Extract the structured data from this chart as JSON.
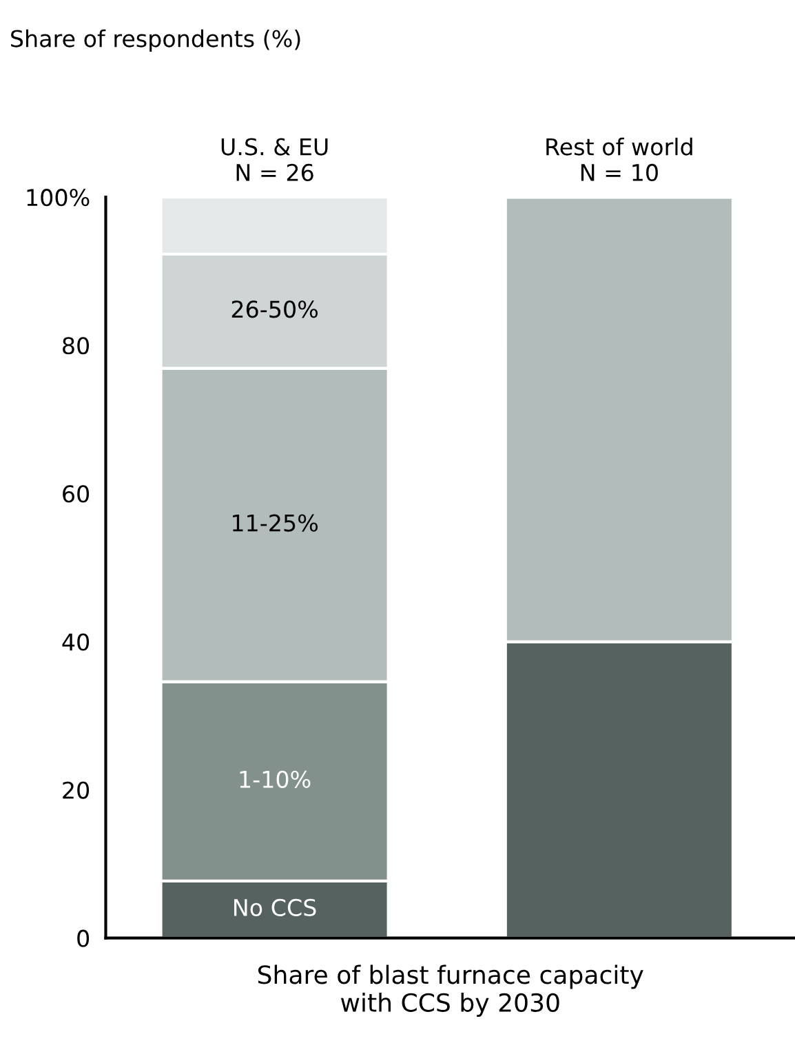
{
  "chart_data": {
    "type": "bar",
    "stacked": true,
    "ylabel": "Share of respondents (%)",
    "xlabel": "Share of blast furnace capacity\nwith CCS by 2030",
    "categories": [
      "U.S. & EU\nN = 26",
      "Rest of world\nN = 10"
    ],
    "series": [
      {
        "name": "No CCS",
        "color": "#56625f",
        "values": [
          7.7,
          40
        ]
      },
      {
        "name": "1-10%",
        "color": "#83918d",
        "values": [
          26.9,
          0
        ]
      },
      {
        "name": "11-25%",
        "color": "#b1bcbb",
        "values": [
          42.3,
          60
        ]
      },
      {
        "name": "26-50%",
        "color": "#ced5d4",
        "values": [
          15.4,
          0
        ]
      },
      {
        "color": "#e5e8e9",
        "values": [
          7.7,
          0
        ]
      }
    ],
    "ylim": [
      0,
      100
    ],
    "yticks": [
      0,
      20,
      40,
      60,
      80,
      {
        "value": 100,
        "label": "100%"
      }
    ],
    "grid": false,
    "legend": false
  }
}
